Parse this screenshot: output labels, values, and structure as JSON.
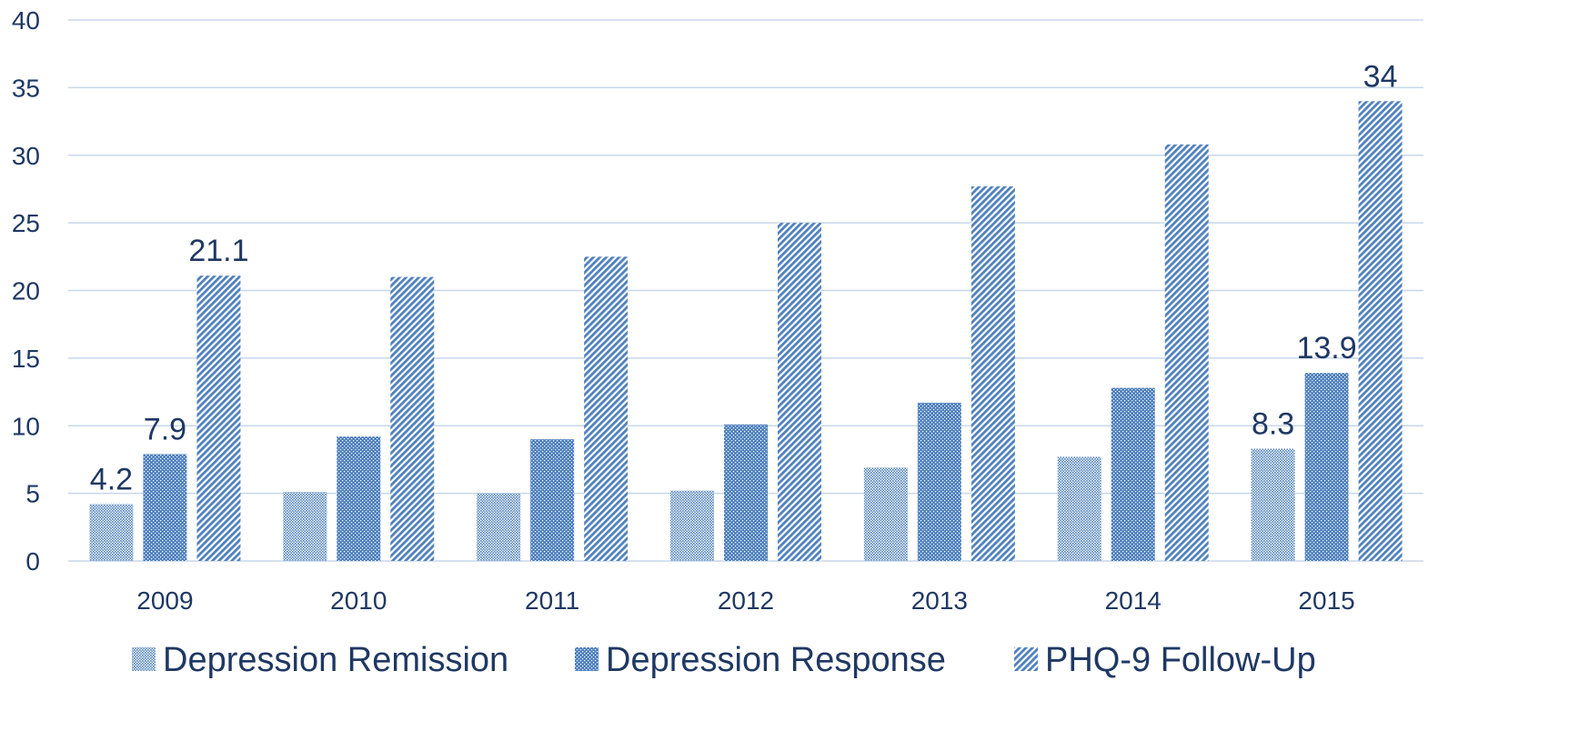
{
  "chart_data": {
    "type": "bar",
    "title": "",
    "xlabel": "",
    "ylabel": "",
    "ylim": [
      0,
      40
    ],
    "yticks": [
      0,
      5,
      10,
      15,
      20,
      25,
      30,
      35,
      40
    ],
    "grid": true,
    "legend_position": "bottom",
    "categories": [
      "2009",
      "2010",
      "2011",
      "2012",
      "2013",
      "2014",
      "2015"
    ],
    "series": [
      {
        "name": "Depression Remission",
        "values": [
          4.2,
          5.1,
          5.0,
          5.2,
          6.9,
          7.7,
          8.3
        ],
        "pattern": "fine-crosshatch",
        "color": "#4f81bd"
      },
      {
        "name": "Depression Response",
        "values": [
          7.9,
          9.2,
          9.0,
          10.1,
          11.7,
          12.8,
          13.9
        ],
        "pattern": "dots",
        "color": "#4f81bd"
      },
      {
        "name": "PHQ-9 Follow-Up",
        "values": [
          21.1,
          21.0,
          22.5,
          25.0,
          27.7,
          30.8,
          34.0
        ],
        "pattern": "diagonal-stripes",
        "color": "#4f81bd"
      }
    ],
    "data_labels": [
      {
        "series": 0,
        "category": 0,
        "text": "4.2"
      },
      {
        "series": 1,
        "category": 0,
        "text": "7.9"
      },
      {
        "series": 2,
        "category": 0,
        "text": "21.1"
      },
      {
        "series": 0,
        "category": 6,
        "text": "8.3"
      },
      {
        "series": 1,
        "category": 6,
        "text": "13.9"
      },
      {
        "series": 2,
        "category": 6,
        "text": "34"
      }
    ],
    "colors": {
      "text": "#1f3864",
      "axis_text": "#1f3864",
      "grid": "#c8d7ea",
      "bar_fill": "#4f81bd",
      "bar_bg": "#ffffff"
    }
  }
}
